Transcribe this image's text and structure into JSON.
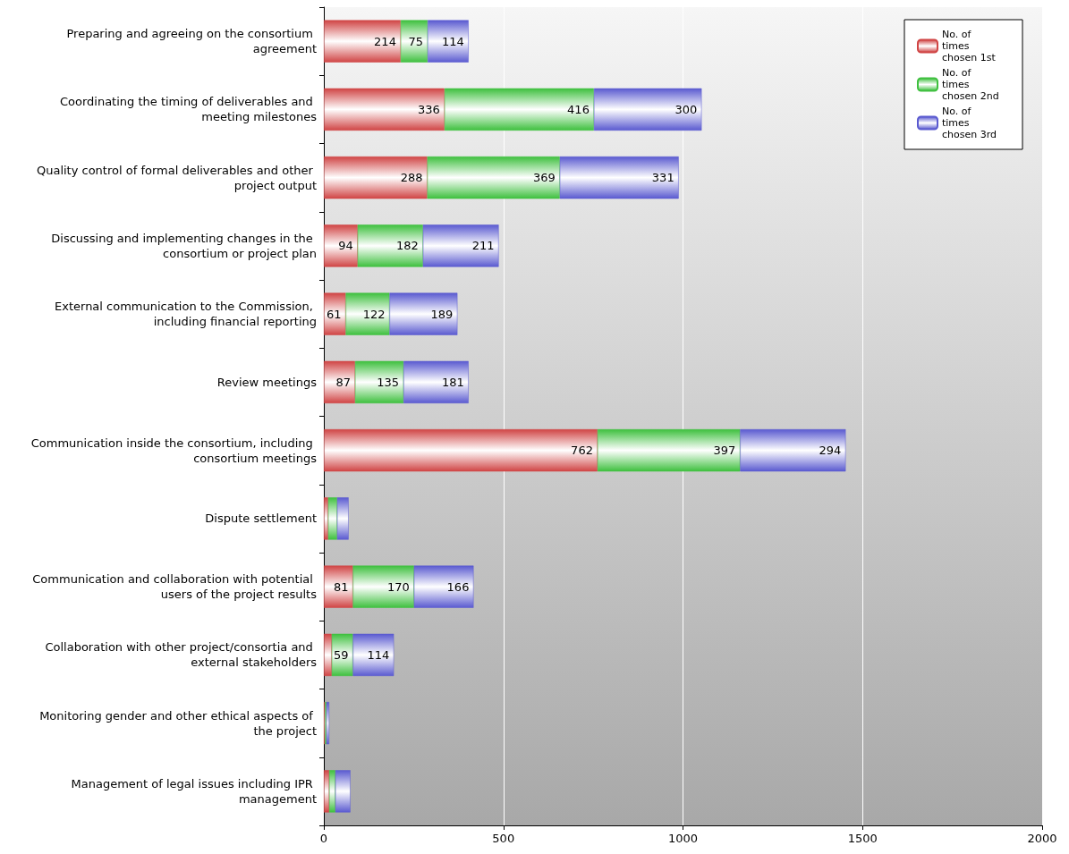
{
  "chart_data": {
    "type": "bar",
    "orientation": "horizontal",
    "stacked": true,
    "categories": [
      "Preparing and agreeing on the consortium agreement",
      "Coordinating the timing of deliverables and meeting milestones",
      "Quality control of formal deliverables and other project output",
      "Discussing and implementing changes in the consortium or project plan",
      "External communication to the Commission, including financial reporting",
      "Review meetings",
      "Communication inside the consortium, including consortium meetings",
      "Dispute settlement",
      "Communication and collaboration with potential users of the project results",
      "Collaboration with other project/consortia and external stakeholders",
      "Monitoring gender and other ethical aspects of the project",
      "Management of legal issues including IPR management"
    ],
    "series": [
      {
        "name": "No. of times chosen 1st",
        "color": "#d04545",
        "values": [
          214,
          336,
          288,
          94,
          61,
          87,
          762,
          12,
          81,
          22,
          3,
          15
        ],
        "value_labels": [
          "214",
          "336",
          "288",
          "94",
          "61",
          "87",
          "762",
          null,
          "81",
          null,
          null,
          null
        ]
      },
      {
        "name": "No. of times chosen 2nd",
        "color": "#3fc03f",
        "values": [
          75,
          416,
          369,
          182,
          122,
          135,
          397,
          25,
          170,
          59,
          4,
          17
        ],
        "value_labels": [
          "75",
          "416",
          "369",
          "182",
          "122",
          "135",
          "397",
          null,
          "170",
          "59",
          null,
          null
        ]
      },
      {
        "name": "No. of times chosen 3rd",
        "color": "#5a5ad0",
        "values": [
          114,
          300,
          331,
          211,
          189,
          181,
          294,
          32,
          166,
          114,
          8,
          42
        ],
        "value_labels": [
          "114",
          "300",
          "331",
          "211",
          "189",
          "181",
          "294",
          null,
          "166",
          "114",
          null,
          null
        ]
      }
    ],
    "xlim": [
      0,
      2000
    ],
    "xticks": [
      0,
      500,
      1000,
      1500,
      2000
    ],
    "grid": "x",
    "legend": "top right"
  }
}
